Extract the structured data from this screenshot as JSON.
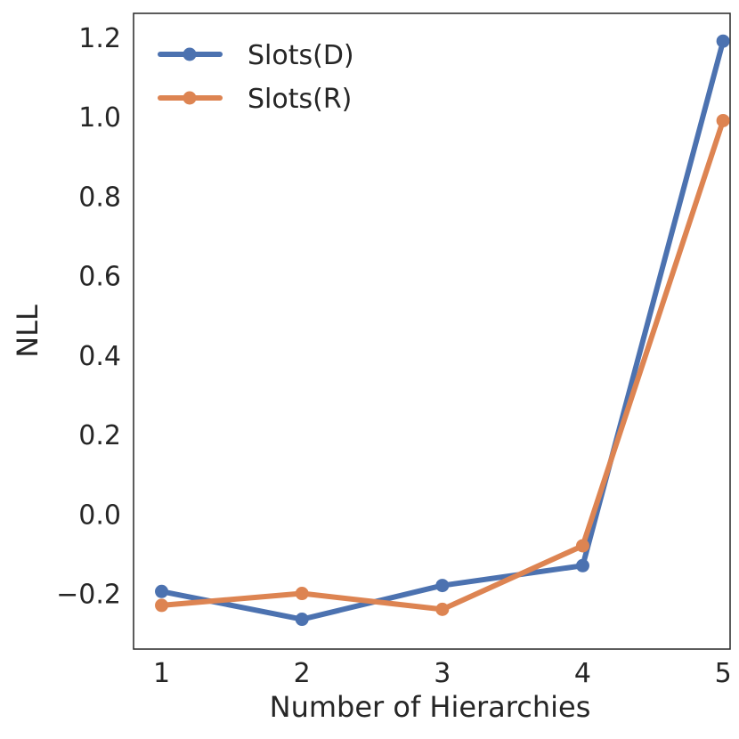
{
  "chart_data": {
    "type": "line",
    "title": "",
    "xlabel": "Number of Hierarchies",
    "ylabel": "NLL",
    "x": [
      1,
      2,
      3,
      4,
      5
    ],
    "xlim": [
      0.8,
      5.05
    ],
    "ylim": [
      -0.34,
      1.26
    ],
    "x_ticks": [
      1,
      2,
      3,
      4,
      5
    ],
    "x_tick_labels": [
      "1",
      "2",
      "3",
      "4",
      "5"
    ],
    "y_ticks": [
      -0.2,
      0.0,
      0.2,
      0.4,
      0.6,
      0.8,
      1.0,
      1.2
    ],
    "y_tick_labels": [
      "−0.2",
      "0.0",
      "0.2",
      "0.4",
      "0.6",
      "0.8",
      "1.0",
      "1.2"
    ],
    "grid": false,
    "legend_position": "top-left",
    "series": [
      {
        "name": "Slots(D)",
        "color": "#4C72B0",
        "values": [
          -0.195,
          -0.265,
          -0.18,
          -0.13,
          1.19
        ]
      },
      {
        "name": "Slots(R)",
        "color": "#DD8452",
        "values": [
          -0.23,
          -0.2,
          -0.24,
          -0.08,
          0.99
        ]
      }
    ]
  }
}
